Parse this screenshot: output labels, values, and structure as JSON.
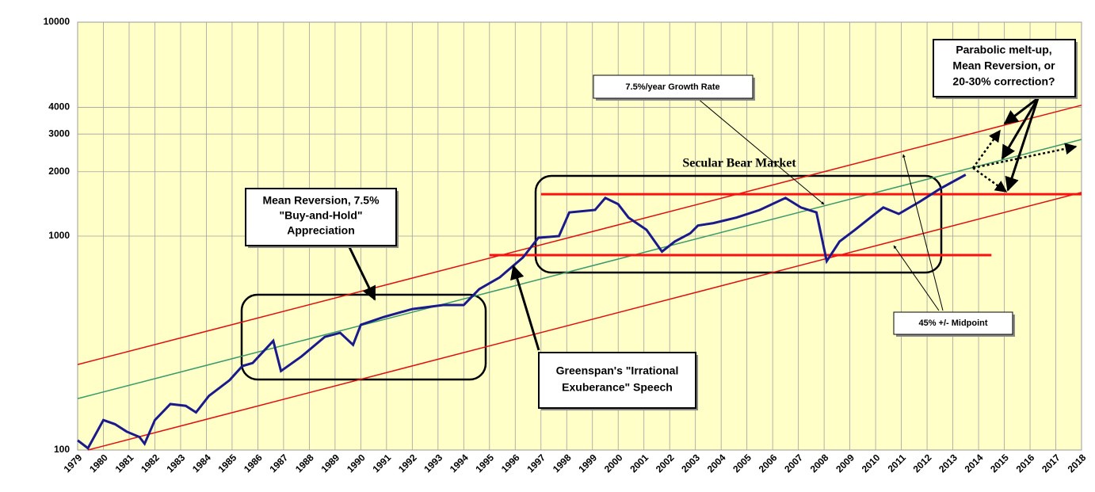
{
  "chart_data": {
    "type": "line",
    "log_scale_y": true,
    "grid": true,
    "background": "#ffffc8",
    "xlim": [
      1979,
      2018
    ],
    "ylim": [
      100,
      10000
    ],
    "yticks": [
      100,
      1000,
      2000,
      3000,
      4000,
      10000
    ],
    "xticks": [
      1979,
      1980,
      1981,
      1982,
      1983,
      1984,
      1985,
      1986,
      1987,
      1988,
      1989,
      1990,
      1991,
      1992,
      1993,
      1994,
      1995,
      1996,
      1997,
      1998,
      1999,
      2000,
      2001,
      2002,
      2003,
      2004,
      2005,
      2006,
      2007,
      2008,
      2009,
      2010,
      2011,
      2012,
      2013,
      2014,
      2015,
      2016,
      2017,
      2018
    ],
    "series": [
      {
        "color": "#1a1a8c",
        "width": 3,
        "x": [
          1979.0,
          1979.4,
          1980.0,
          1980.45,
          1980.9,
          1981.4,
          1981.6,
          1982.0,
          1982.6,
          1983.2,
          1983.6,
          1984.1,
          1984.9,
          1985.4,
          1985.8,
          1986.6,
          1986.9,
          1987.7,
          1988.6,
          1989.2,
          1989.7,
          1990.0,
          1990.9,
          1992.0,
          1993.2,
          1994.0,
          1994.6,
          1995.4,
          1996.3,
          1996.9,
          1997.7,
          1998.1,
          1999.1,
          1999.5,
          2000.0,
          2000.4,
          2001.1,
          2001.7,
          2002.2,
          2002.8,
          2003.1,
          2003.7,
          2004.6,
          2005.5,
          2006.5,
          2007.1,
          2007.7,
          2008.1,
          2008.6,
          2009.2,
          2009.8,
          2010.3,
          2010.9,
          2011.7,
          2012.5,
          2013.5
        ],
        "values": [
          111,
          102,
          138,
          132,
          122,
          115,
          107,
          138,
          164,
          161,
          150,
          179,
          212,
          247,
          255,
          324,
          234,
          274,
          338,
          353,
          310,
          385,
          419,
          456,
          476,
          476,
          565,
          642,
          794,
          982,
          1000,
          1290,
          1325,
          1508,
          1410,
          1221,
          1070,
          846,
          944,
          1031,
          1120,
          1150,
          1221,
          1325,
          1508,
          1360,
          1290,
          763,
          944,
          1070,
          1221,
          1360,
          1270,
          1444,
          1664,
          1936
        ]
      },
      {
        "color": "#3a9a6a",
        "width": 1.5,
        "x": [
          1979,
          2018
        ],
        "values": [
          174,
          2830
        ]
      },
      {
        "color": "#e01010",
        "width": 1.5,
        "x": [
          1979,
          2018
        ],
        "values": [
          251,
          4090
        ]
      },
      {
        "color": "#e01010",
        "width": 1.5,
        "x": [
          1979.4,
          2018
        ],
        "values": [
          100,
          1600
        ]
      },
      {
        "color": "#ff1010",
        "width": 3,
        "x": [
          1997,
          2018
        ],
        "values": [
          1570,
          1570
        ]
      },
      {
        "color": "#ff1010",
        "width": 3,
        "x": [
          1995,
          2014.5
        ],
        "values": [
          815,
          815
        ]
      }
    ],
    "annotations": [
      {
        "lines": [
          "Mean Reversion, 7.5%",
          "\"Buy-and-Hold\"",
          "Appreciation"
        ]
      },
      {
        "lines": [
          "Greenspan's \"Irrational",
          "Exuberance\" Speech"
        ]
      },
      {
        "lines": [
          "Secular Bear Market"
        ]
      },
      {
        "lines": [
          "7.5%/year Growth Rate"
        ]
      },
      {
        "lines": [
          "45% +/- Midpoint"
        ]
      },
      {
        "lines": [
          "Parabolic  melt-up,",
          "Mean Reversion, or",
          "20-30% correction?"
        ]
      }
    ]
  }
}
